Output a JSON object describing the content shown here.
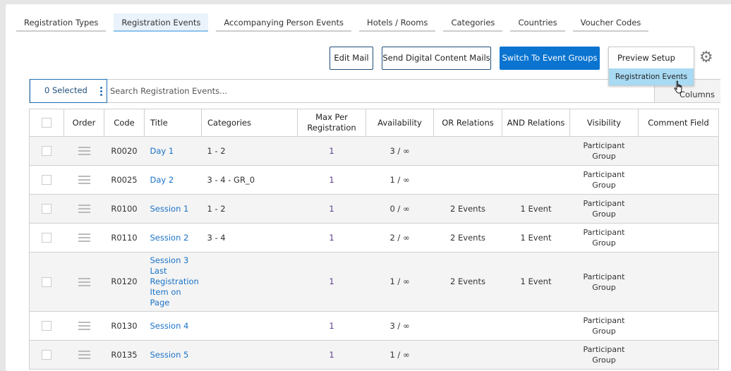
{
  "tabs": [
    "Registration Types",
    "Registration Events",
    "Accompanying Person Events",
    "Hotels / Rooms",
    "Categories",
    "Countries",
    "Voucher Codes"
  ],
  "active_tab": "Registration Events",
  "toolbar": {
    "edit_mail": "Edit Mail",
    "send_digital": "Send Digital Content Mails",
    "switch_groups": "Switch To Event Groups"
  },
  "preview": {
    "label": "Preview Setup",
    "item": "Registration Events"
  },
  "search": {
    "selected": "0 Selected",
    "placeholder": "Search Registration Events...",
    "columns": "Columns"
  },
  "table": {
    "headers": [
      "",
      "Order",
      "Code",
      "Title",
      "Categories",
      "Max Per Registration",
      "Availability",
      "OR Relations",
      "AND Relations",
      "Visibility",
      "Comment Field"
    ],
    "rows": [
      {
        "code": "R0020",
        "title": "Day 1",
        "categories": "1 - 2",
        "max": "1",
        "availability": "3 / ∞",
        "or": "",
        "and": "",
        "visibility": "Participant Group",
        "comment": ""
      },
      {
        "code": "R0025",
        "title": "Day 2",
        "categories": "3 - 4 - GR_0",
        "max": "1",
        "availability": "1 / ∞",
        "or": "",
        "and": "",
        "visibility": "Participant Group",
        "comment": ""
      },
      {
        "code": "R0100",
        "title": "Session 1",
        "categories": "1 - 2",
        "max": "1",
        "availability": "0 / ∞",
        "or": "2 Events",
        "and": "1 Event",
        "visibility": "Participant Group",
        "comment": ""
      },
      {
        "code": "R0110",
        "title": "Session 2",
        "categories": "3 - 4",
        "max": "1",
        "availability": "2 / ∞",
        "or": "2 Events",
        "and": "1 Event",
        "visibility": "Participant Group",
        "comment": ""
      },
      {
        "code": "R0120",
        "title": "Session 3 Last Registration Item on Page",
        "categories": "",
        "max": "1",
        "availability": "1 / ∞",
        "or": "2 Events",
        "and": "1 Event",
        "visibility": "Participant Group",
        "comment": ""
      },
      {
        "code": "R0130",
        "title": "Session 4",
        "categories": "",
        "max": "1",
        "availability": "3 / ∞",
        "or": "",
        "and": "",
        "visibility": "Participant Group",
        "comment": ""
      },
      {
        "code": "R0135",
        "title": "Session 5",
        "categories": "",
        "max": "1",
        "availability": "1 / ∞",
        "or": "",
        "and": "",
        "visibility": "Participant Group",
        "comment": ""
      }
    ]
  },
  "colors": {
    "primary": "#0a74d0",
    "link": "#1a73c7",
    "dropdown_highlight": "#a8daf3"
  }
}
